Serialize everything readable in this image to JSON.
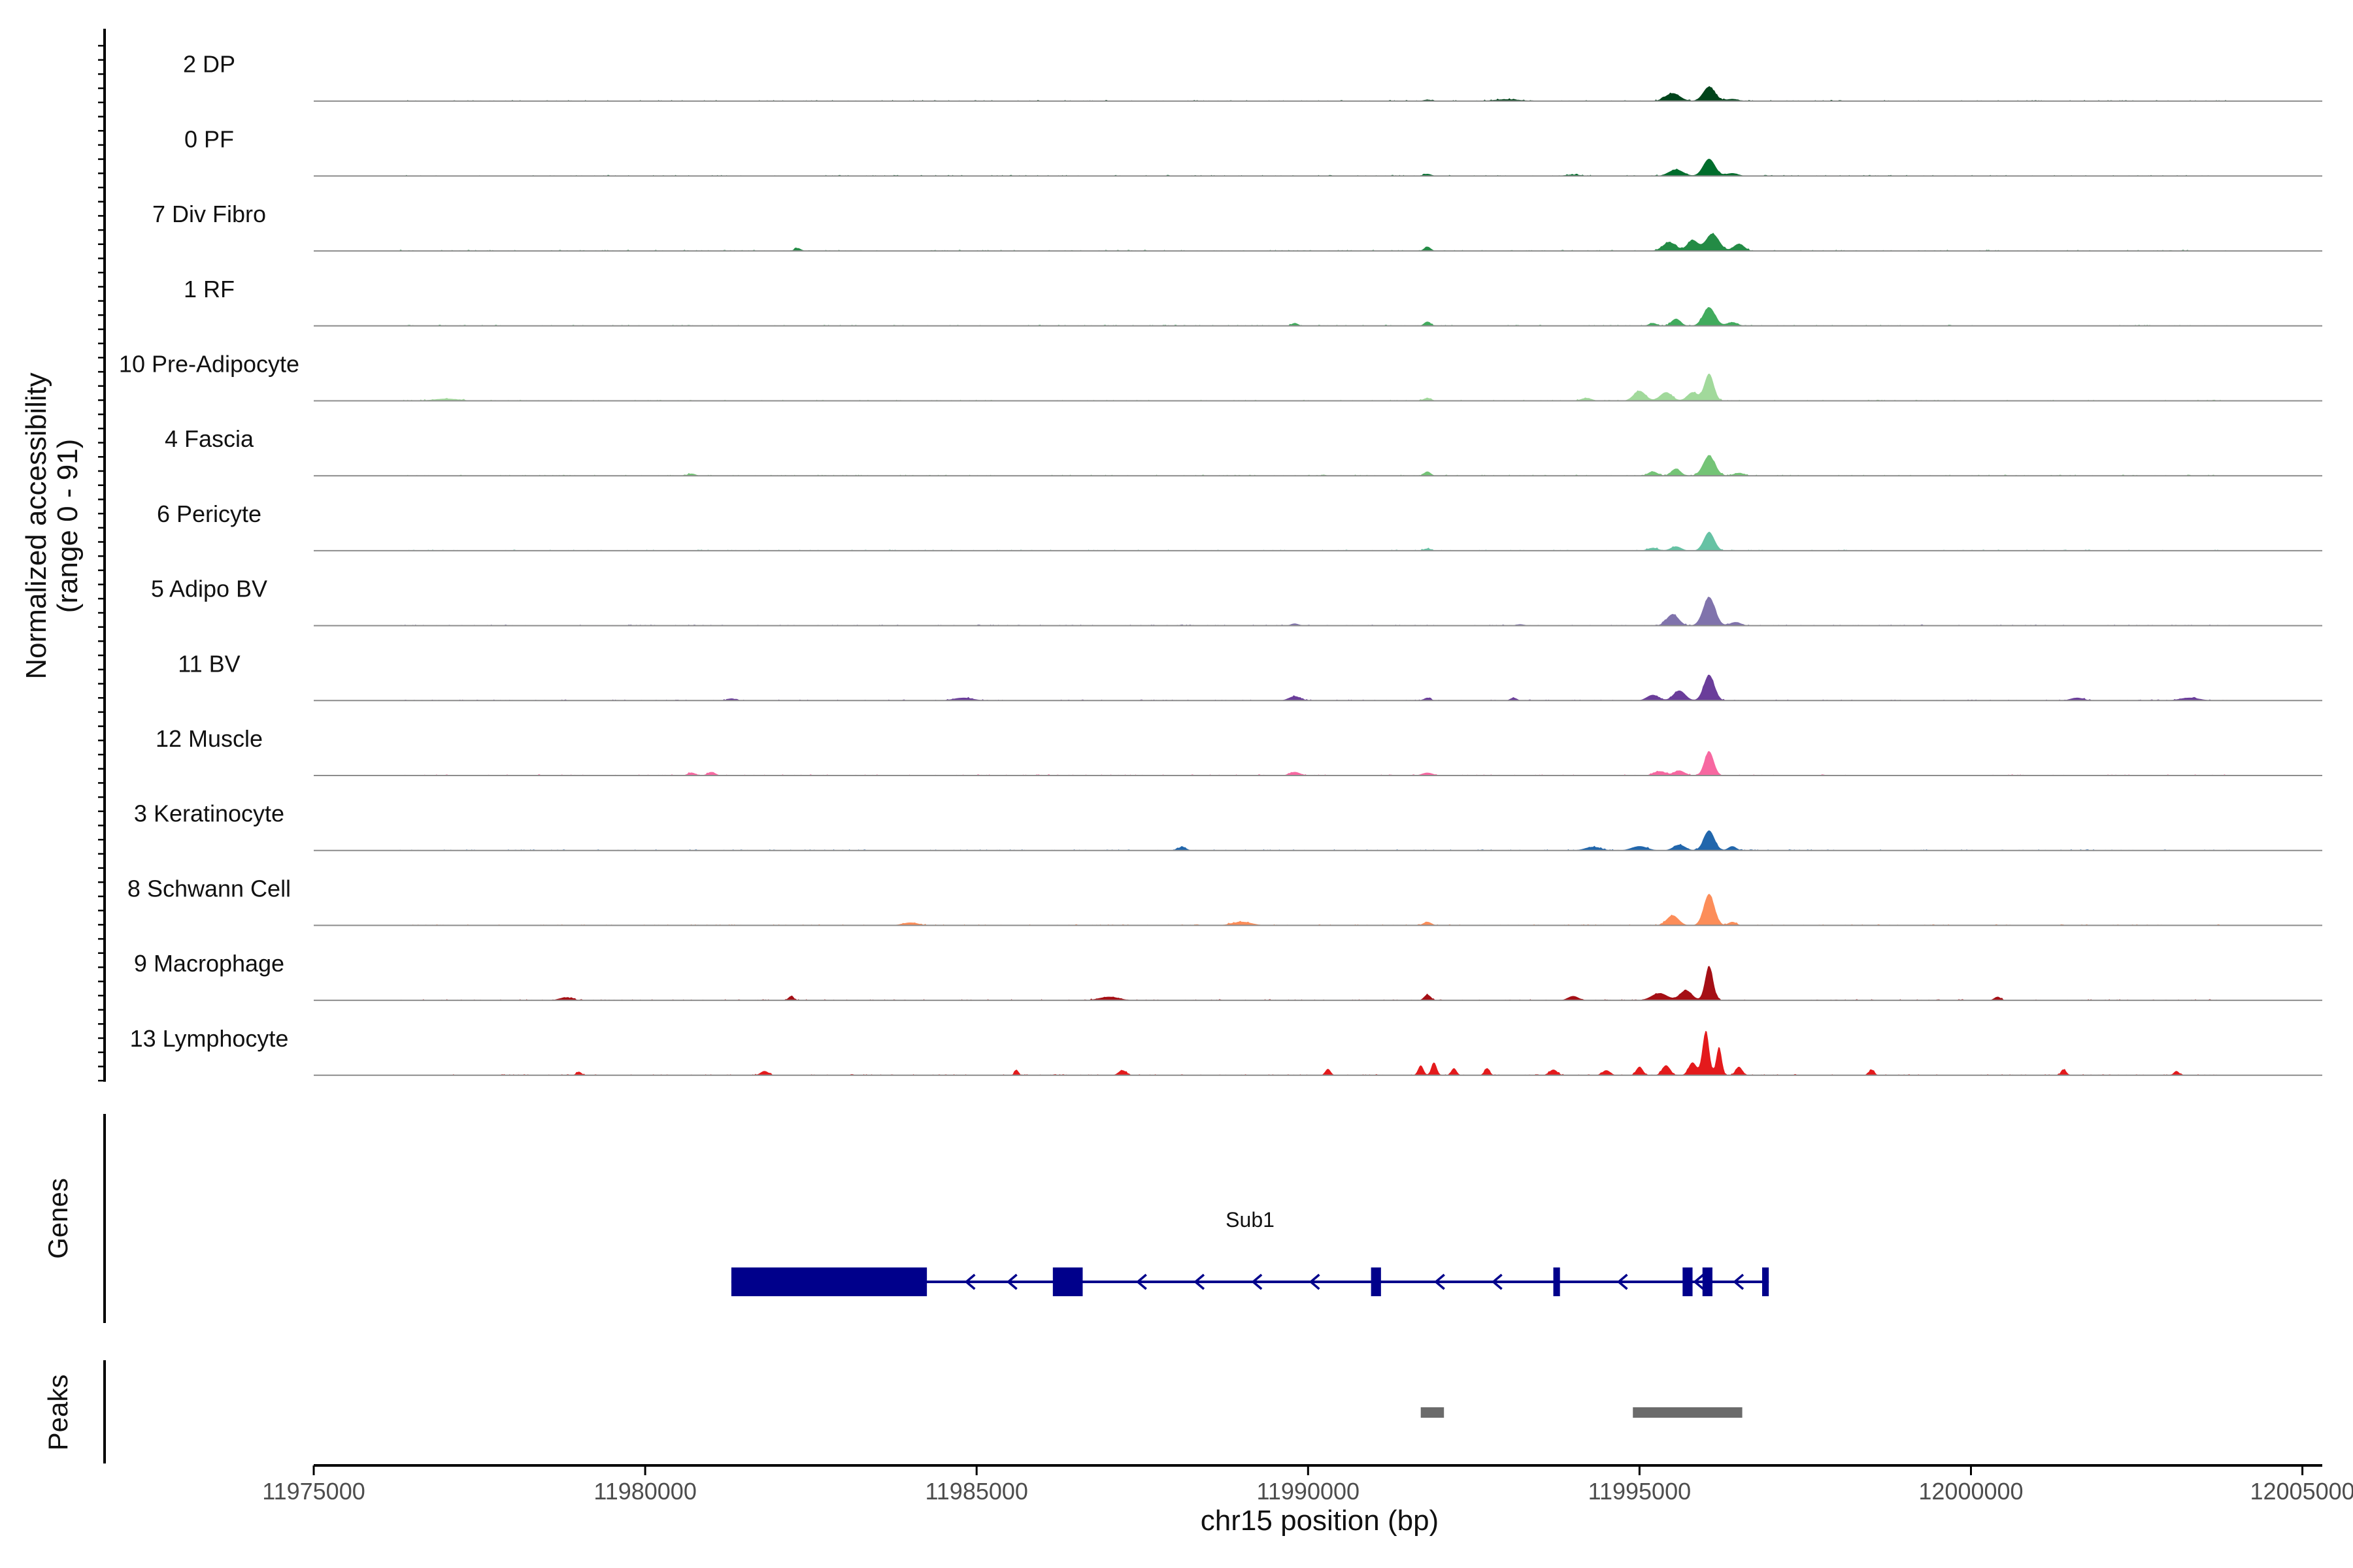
{
  "chart_data": {
    "type": "area",
    "title": "",
    "ylabel": "Normalized accessibility",
    "ylabel_range": "(range 0 - 91)",
    "ylim": [
      0,
      91
    ],
    "xlabel": "chr15 position (bp)",
    "xlim": [
      11975000,
      12005300
    ],
    "x_ticks": [
      "11975000",
      "11980000",
      "11985000",
      "11990000",
      "11995000",
      "12000000",
      "12005000"
    ],
    "x_tick_values": [
      11975000,
      11980000,
      11985000,
      11990000,
      11995000,
      12000000,
      12005000
    ],
    "series": [
      {
        "name": "2 DP",
        "color": "#00441b",
        "peaks": [
          [
            11993000,
            2.5,
            200
          ],
          [
            11995500,
            11,
            110
          ],
          [
            11996050,
            20,
            90
          ],
          [
            11996400,
            3,
            90
          ],
          [
            11991800,
            2,
            60
          ]
        ]
      },
      {
        "name": "0 PF",
        "color": "#006d2c",
        "peaks": [
          [
            11995550,
            9,
            110
          ],
          [
            11996050,
            24,
            90
          ],
          [
            11996400,
            4,
            90
          ],
          [
            11991800,
            3,
            60
          ],
          [
            11994000,
            2,
            120
          ]
        ]
      },
      {
        "name": "7 Div Fibro",
        "color": "#238b45",
        "peaks": [
          [
            11982300,
            4,
            50
          ],
          [
            11991800,
            6,
            50
          ],
          [
            11995450,
            12,
            100
          ],
          [
            11995800,
            15,
            80
          ],
          [
            11996100,
            24,
            100
          ],
          [
            11996500,
            10,
            80
          ]
        ]
      },
      {
        "name": "1 RF",
        "color": "#41ab5d",
        "peaks": [
          [
            11989800,
            4,
            50
          ],
          [
            11991800,
            6,
            50
          ],
          [
            11995200,
            4,
            60
          ],
          [
            11995550,
            10,
            70
          ],
          [
            11996050,
            26,
            90
          ],
          [
            11996400,
            5,
            80
          ]
        ]
      },
      {
        "name": "10 Pre-Adipocyte",
        "color": "#a1d99b",
        "peaks": [
          [
            11977000,
            3,
            200
          ],
          [
            11991800,
            4,
            60
          ],
          [
            11994200,
            4,
            80
          ],
          [
            11995000,
            14,
            90
          ],
          [
            11995400,
            12,
            90
          ],
          [
            11995800,
            12,
            80
          ],
          [
            11996050,
            38,
            70
          ]
        ]
      },
      {
        "name": "4 Fascia",
        "color": "#74c476",
        "peaks": [
          [
            11980700,
            3,
            60
          ],
          [
            11991800,
            6,
            50
          ],
          [
            11995200,
            6,
            70
          ],
          [
            11995550,
            10,
            70
          ],
          [
            11996050,
            28,
            90
          ],
          [
            11996500,
            4,
            80
          ]
        ]
      },
      {
        "name": "6 Pericyte",
        "color": "#66c2a4",
        "peaks": [
          [
            11991800,
            3,
            60
          ],
          [
            11995200,
            4,
            80
          ],
          [
            11995550,
            6,
            80
          ],
          [
            11996050,
            26,
            80
          ]
        ]
      },
      {
        "name": "5 Adipo BV",
        "color": "#8073ac",
        "peaks": [
          [
            11989800,
            3,
            60
          ],
          [
            11993200,
            2,
            60
          ],
          [
            11995500,
            16,
            90
          ],
          [
            11996050,
            40,
            90
          ],
          [
            11996450,
            5,
            80
          ]
        ]
      },
      {
        "name": "11 BV",
        "color": "#6a3d9a",
        "peaks": [
          [
            11981300,
            3,
            60
          ],
          [
            11984800,
            4,
            150
          ],
          [
            11989800,
            6,
            90
          ],
          [
            11991800,
            4,
            50
          ],
          [
            11993100,
            4,
            50
          ],
          [
            11995200,
            8,
            90
          ],
          [
            11995600,
            14,
            90
          ],
          [
            11996050,
            36,
            80
          ],
          [
            12001600,
            4,
            100
          ],
          [
            12003300,
            4,
            150
          ]
        ]
      },
      {
        "name": "12 Muscle",
        "color": "#f768a1",
        "peaks": [
          [
            11980700,
            4,
            60
          ],
          [
            11981000,
            5,
            60
          ],
          [
            11989800,
            5,
            80
          ],
          [
            11991800,
            4,
            80
          ],
          [
            11995300,
            6,
            90
          ],
          [
            11995600,
            7,
            80
          ],
          [
            11996050,
            34,
            70
          ]
        ]
      },
      {
        "name": "3 Keratinocyte",
        "color": "#2166ac",
        "peaks": [
          [
            11988100,
            5,
            60
          ],
          [
            11994300,
            5,
            120
          ],
          [
            11995000,
            6,
            120
          ],
          [
            11995600,
            8,
            90
          ],
          [
            11996050,
            28,
            80
          ],
          [
            11996400,
            6,
            60
          ]
        ]
      },
      {
        "name": "8 Schwann Cell",
        "color": "#fc8d59",
        "peaks": [
          [
            11984000,
            4,
            120
          ],
          [
            11989000,
            5,
            150
          ],
          [
            11991800,
            5,
            60
          ],
          [
            11995500,
            14,
            90
          ],
          [
            11996050,
            44,
            80
          ],
          [
            11996400,
            5,
            60
          ]
        ]
      },
      {
        "name": "9 Macrophage",
        "color": "#a50f15",
        "peaks": [
          [
            11978800,
            4,
            100
          ],
          [
            11982200,
            6,
            40
          ],
          [
            11987000,
            5,
            150
          ],
          [
            11991800,
            8,
            50
          ],
          [
            11994000,
            6,
            80
          ],
          [
            11995300,
            10,
            120
          ],
          [
            11995700,
            14,
            90
          ],
          [
            11996050,
            48,
            60
          ],
          [
            12000400,
            5,
            50
          ]
        ]
      },
      {
        "name": "13 Lymphocyte",
        "color": "#e41a1c",
        "peaks": [
          [
            11979000,
            5,
            40
          ],
          [
            11981800,
            6,
            60
          ],
          [
            11985600,
            8,
            30
          ],
          [
            11987200,
            7,
            60
          ],
          [
            11990300,
            9,
            40
          ],
          [
            11991700,
            14,
            40
          ],
          [
            11991900,
            18,
            40
          ],
          [
            11992200,
            10,
            40
          ],
          [
            11992700,
            10,
            40
          ],
          [
            11993700,
            8,
            60
          ],
          [
            11994500,
            7,
            60
          ],
          [
            11995000,
            12,
            50
          ],
          [
            11995400,
            14,
            60
          ],
          [
            11995800,
            18,
            60
          ],
          [
            11996000,
            62,
            50
          ],
          [
            11996200,
            40,
            40
          ],
          [
            11996500,
            12,
            50
          ],
          [
            11998500,
            8,
            40
          ],
          [
            12001400,
            8,
            40
          ],
          [
            12003100,
            6,
            40
          ]
        ]
      }
    ],
    "genes": [
      {
        "name": "Sub1",
        "strand": "-",
        "start": 11981300,
        "end": 11996950,
        "exons": [
          [
            11981300,
            11984250
          ],
          [
            11986150,
            11986600
          ],
          [
            11990950,
            11991100
          ],
          [
            11993700,
            11993800
          ],
          [
            11995650,
            11995800
          ],
          [
            11995950,
            11996100
          ],
          [
            11996850,
            11996950
          ]
        ]
      }
    ],
    "peaks_track": [
      [
        11991700,
        11992050
      ],
      [
        11994900,
        11996550
      ]
    ],
    "panels": [
      "Genes",
      "Peaks"
    ]
  }
}
